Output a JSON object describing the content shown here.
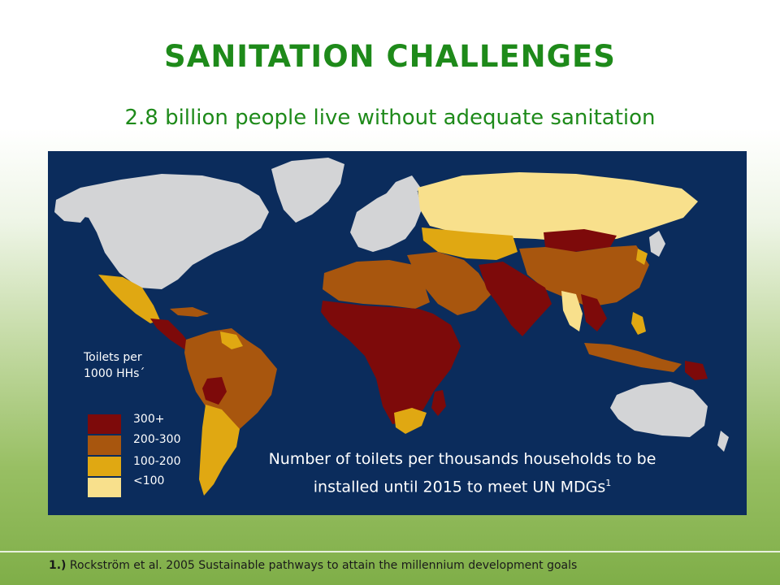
{
  "slide": {
    "title": "SANITATION CHALLENGES",
    "subtitle": "2.8 billion people live without adequate sanitation"
  },
  "map": {
    "legend": {
      "title_line1": "Toilets per",
      "title_line2": "1000 HHs´",
      "classes": [
        {
          "label": "300+",
          "color": "#7d0a0a"
        },
        {
          "label": "200-300",
          "color": "#a8560e"
        },
        {
          "label": "100-200",
          "color": "#e0a812"
        },
        {
          "label": "<100",
          "color": "#f8e08c"
        }
      ]
    },
    "no_data_color": "#d3d4d6",
    "ocean_color": "#0b2c5c",
    "caption_line1": "Number of toilets per thousands households to be",
    "caption_line2": "installed until 2015 to meet UN MDGs",
    "caption_sup": "1"
  },
  "footnote": {
    "number": "1.)",
    "text": "Rockström et al. 2005 Sustainable pathways to attain the millennium development goals"
  }
}
